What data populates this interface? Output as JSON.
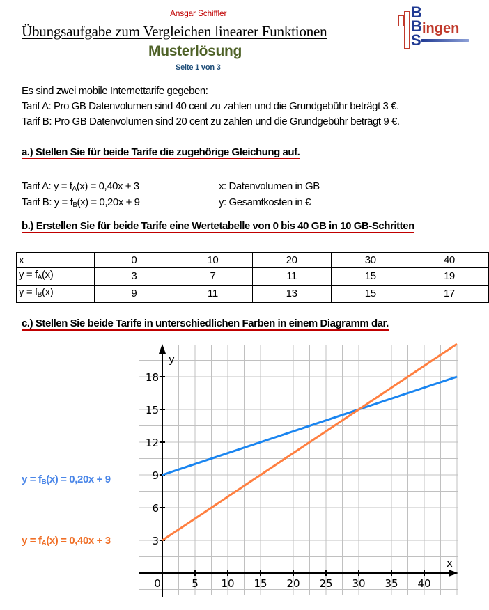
{
  "header": {
    "author": "Ansgar Schiffler",
    "title": "Übungsaufgabe zum Vergleichen linearer Funktionen",
    "subtitle": "Musterlösung",
    "page": "Seite 1 von 3",
    "logo": {
      "text": "BBS Bingen",
      "colors": {
        "letters": "#1f3a93",
        "accent": "#c0392b"
      }
    }
  },
  "intro": [
    "Es sind zwei mobile Internettarife  gegeben:",
    "Tarif A: Pro GB Datenvolumen sind 40 cent zu zahlen und die Grundgebühr beträgt 3 €.",
    "Tarif B: Pro GB Datenvolumen sind 20 cent zu zahlen und die Grundgebühr beträgt 9 €."
  ],
  "task_a": {
    "heading": "a.)  Stellen Sie für beide Tarife die zugehörige Gleichung auf.",
    "eq_a": {
      "prefix": "Tarif A: y = f",
      "sub": "A",
      "suffix": "(x) = 0,40x + 3"
    },
    "eq_b": {
      "prefix": "Tarif B: y = f",
      "sub": "B",
      "suffix": "(x) = 0,20x + 9"
    },
    "legend_x": "x: Datenvolumen in GB",
    "legend_y": "y: Gesamtkosten in €"
  },
  "task_b": {
    "heading": "b.) Erstellen Sie für beide Tarife eine Wertetabelle von 0 bis 40 GB in 10 GB-Schritten",
    "table": {
      "row_x": {
        "label": "x",
        "values": [
          "0",
          "10",
          "20",
          "30",
          "40"
        ]
      },
      "row_a": {
        "label_prefix": "y = f",
        "label_sub": "A",
        "label_suffix": "(x)",
        "values": [
          "3",
          "7",
          "11",
          "15",
          "19"
        ]
      },
      "row_b": {
        "label_prefix": "y = f",
        "label_sub": "B",
        "label_suffix": "(x)",
        "values": [
          "9",
          "11",
          "13",
          "15",
          "17"
        ]
      }
    }
  },
  "task_c": {
    "heading": "c.) Stellen Sie beide Tarife in unterschiedlichen Farben in einem Diagramm dar.",
    "label_b": {
      "prefix": "y = f",
      "sub": "B",
      "suffix": "(x) = 0,20x + 9"
    },
    "label_a": {
      "prefix": "y = f",
      "sub": "A",
      "suffix": "(x) = 0,40x + 3"
    }
  },
  "chart_data": {
    "type": "line",
    "xlabel": "x",
    "ylabel": "y",
    "xlim": [
      -2.5,
      45
    ],
    "ylim": [
      -1.5,
      21
    ],
    "x_ticks": [
      0,
      5,
      10,
      15,
      20,
      25,
      30,
      35,
      40
    ],
    "y_ticks": [
      3,
      6,
      9,
      12,
      15,
      18
    ],
    "grid": true,
    "series": [
      {
        "color": "#1a85f0",
        "x": [
          0,
          45
        ],
        "y": [
          9,
          18
        ]
      },
      {
        "color": "#ff7f40",
        "x": [
          0,
          45
        ],
        "y": [
          3,
          21
        ]
      }
    ]
  }
}
